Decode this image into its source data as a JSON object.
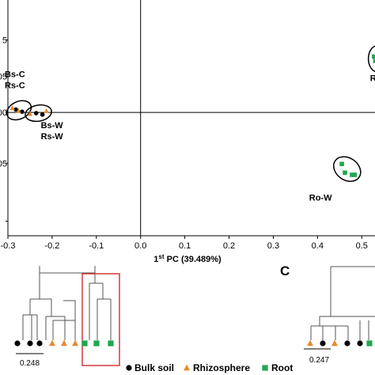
{
  "colors": {
    "bulk_soil": "#000000",
    "rhizosphere": "#e8892b",
    "root": "#1fa84f",
    "highlight_box": "#d12a2a",
    "axis": "#000000"
  },
  "chart_data": [
    {
      "type": "scatter",
      "xlabel_pre": "1",
      "xlabel_sup": "st",
      "xlabel_post": " PC (39.489%)",
      "xlim": [
        -0.3,
        0.53
      ],
      "ylim": [
        -0.17,
        0.155
      ],
      "x_ticks": [
        "-0.3",
        "-0.2",
        "-0.1",
        "0.0",
        "0.1",
        "0.2",
        "0.3",
        "0.4",
        "0.5"
      ],
      "x_tick_values": [
        -0.3,
        -0.2,
        -0.1,
        0.0,
        0.1,
        0.2,
        0.3,
        0.4,
        0.5
      ],
      "y_tick_labels_partial": [
        "5",
        "05",
        "00",
        "05",
        ""
      ],
      "y_tick_values": [
        0.1,
        0.05,
        0.0,
        -0.07,
        -0.15
      ],
      "series": [
        {
          "name": "Bulk soil",
          "marker": "circle",
          "color": "#000000",
          "points": [
            [
              -0.282,
              0.004
            ],
            [
              -0.268,
              0.001
            ],
            [
              -0.236,
              -0.001
            ],
            [
              -0.222,
              -0.003
            ]
          ]
        },
        {
          "name": "Rhizosphere",
          "marker": "triangle",
          "color": "#e8892b",
          "points": [
            [
              -0.29,
              0.006
            ],
            [
              -0.276,
              0.002
            ],
            [
              -0.25,
              -0.002
            ],
            [
              -0.213,
              0.002
            ]
          ]
        },
        {
          "name": "Root",
          "marker": "square",
          "color": "#1fa84f",
          "points": [
            [
              0.455,
              -0.071
            ],
            [
              0.462,
              -0.083
            ],
            [
              0.478,
              -0.086
            ],
            [
              0.484,
              -0.086
            ],
            [
              0.528,
              0.077
            ],
            [
              0.531,
              0.071
            ]
          ]
        }
      ],
      "groups": [
        {
          "labels": [
            "Bs-C",
            "Rs-C"
          ],
          "center": [
            -0.275,
            0.003
          ],
          "r": [
            0.029,
            0.012
          ],
          "angle": -25
        },
        {
          "labels": [
            "Bs-W",
            "Rs-W"
          ],
          "center": [
            -0.231,
            -0.001
          ],
          "r": [
            0.03,
            0.011
          ],
          "angle": -10
        },
        {
          "labels": [
            "Ro-W"
          ],
          "center": [
            0.467,
            -0.078
          ],
          "r": [
            0.025,
            0.02
          ],
          "angle": -55
        },
        {
          "labels": [
            "R"
          ],
          "center": [
            0.535,
            0.074
          ],
          "r": [
            0.02,
            0.018
          ],
          "angle": 0
        }
      ]
    }
  ],
  "dendrogram_b": {
    "scale_label": "0.248",
    "leaves": [
      "circle",
      "circle",
      "circle",
      "triangle",
      "triangle",
      "triangle",
      "square",
      "square",
      "square"
    ]
  },
  "panel_c": {
    "letter": "C",
    "scale_label": "0.247",
    "leaves": [
      "triangle",
      "circle",
      "triangle",
      "circle",
      "circle",
      "square"
    ]
  },
  "legend": [
    {
      "marker": "circle",
      "color": "#000000",
      "label": "Bulk soil"
    },
    {
      "marker": "triangle",
      "color": "#e8892b",
      "label": "Rhizosphere"
    },
    {
      "marker": "square",
      "color": "#1fa84f",
      "label": "Root"
    }
  ]
}
